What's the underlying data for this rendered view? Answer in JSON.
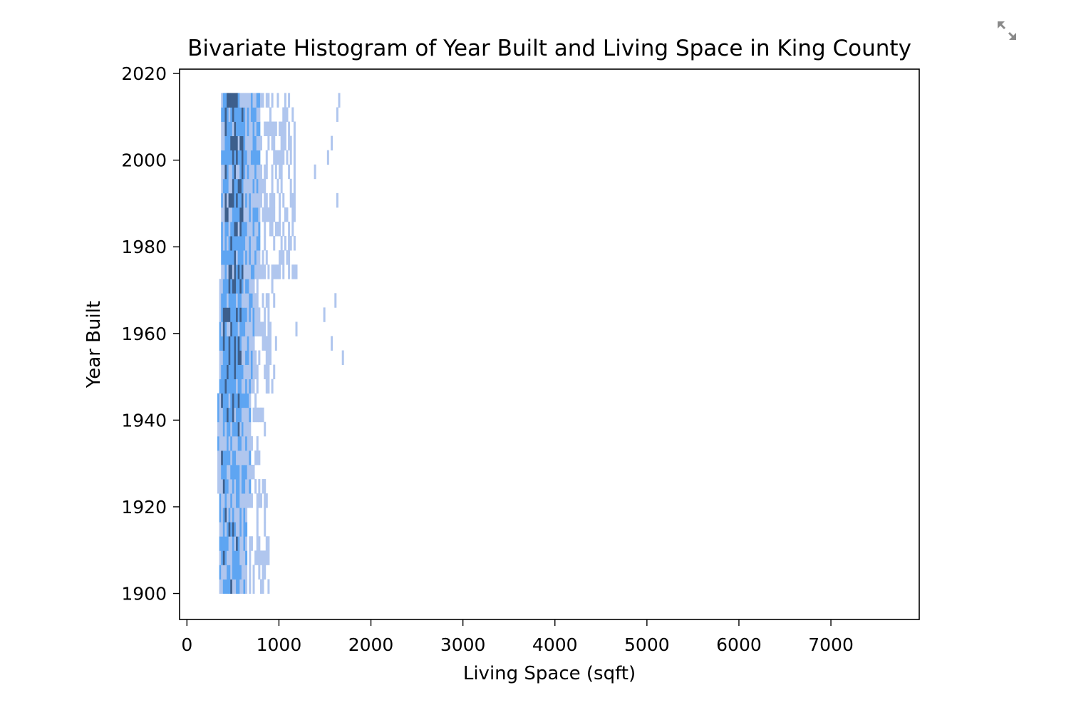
{
  "chart_data": {
    "type": "heatmap",
    "title": "Bivariate Histogram of Year Built and Living Space in King County",
    "xlabel": "Living Space (sqft)",
    "ylabel": "Year Built",
    "xlim": [
      -80,
      7960
    ],
    "ylim": [
      1894,
      2021
    ],
    "x_ticks": [
      0,
      1000,
      2000,
      3000,
      4000,
      5000,
      6000,
      7000
    ],
    "y_ticks": [
      1900,
      1920,
      1940,
      1960,
      1980,
      2000,
      2020
    ],
    "grid": false,
    "legend": "none",
    "colors": {
      "light": "#b0c6ee",
      "mid": "#5ea5f2",
      "dark": "#3d5f8c"
    },
    "x_bins": {
      "start": 290,
      "width": 156
    },
    "y_bins": {
      "start": 1900,
      "width": 3.3
    },
    "cells": [
      [
        0,
        10,
        4,
        0
      ],
      [
        1,
        16,
        1,
        1
      ],
      [
        2,
        30,
        0,
        1
      ],
      [
        0,
        1,
        8,
        1
      ],
      [
        0,
        1,
        12,
        1
      ],
      [
        0,
        1,
        20,
        1
      ],
      [
        0,
        1,
        24,
        1
      ],
      [
        1,
        25,
        0,
        1
      ],
      [
        2,
        25,
        1,
        1
      ],
      [
        1,
        23,
        0,
        1
      ],
      [
        1,
        29,
        2,
        1
      ],
      [
        7,
        35,
        0,
        1
      ],
      [
        7,
        11,
        0,
        1
      ],
      [
        13,
        34,
        0,
        1
      ],
      [
        6,
        8,
        0,
        1
      ],
      [
        12,
        20,
        0,
        1
      ],
      [
        15,
        22,
        0,
        1
      ],
      [
        11,
        17,
        0,
        1
      ],
      [
        16,
        17,
        0,
        1
      ],
      [
        8,
        20,
        0,
        1
      ],
      [
        8,
        14,
        0,
        1
      ],
      [
        14,
        20,
        0,
        1
      ],
      [
        17,
        19,
        0,
        1
      ],
      [
        19,
        22,
        0,
        1
      ],
      [
        18,
        22,
        0,
        1
      ],
      [
        21,
        28,
        0,
        1
      ],
      [
        25,
        27,
        0,
        1
      ],
      [
        22,
        24,
        0,
        1
      ],
      [
        24,
        28,
        0,
        1
      ],
      [
        28,
        33,
        0,
        1
      ],
      [
        30,
        33,
        0,
        1
      ],
      [
        32,
        34,
        0,
        1
      ],
      [
        33,
        34,
        0,
        1
      ],
      [
        19,
        31,
        3,
        1
      ],
      [
        20,
        35,
        5,
        1
      ],
      [
        23,
        34,
        7,
        1
      ],
      [
        18,
        26,
        9,
        1
      ],
      [
        27,
        35,
        9,
        1
      ],
      [
        15,
        25,
        10,
        1
      ],
      [
        13,
        22,
        11,
        1
      ],
      [
        31,
        34,
        12,
        1
      ],
      [
        28,
        31,
        13,
        1
      ],
      [
        34,
        35,
        13,
        1
      ],
      [
        37,
        38,
        14,
        1
      ],
      [
        40,
        41,
        15,
        1
      ],
      [
        41,
        42,
        16,
        1
      ],
      [
        44,
        45,
        16,
        1
      ],
      [
        45,
        46,
        17,
        1
      ],
      [
        46,
        47,
        18,
        1
      ],
      [
        47,
        48,
        19,
        1
      ],
      [
        48,
        49,
        20,
        1
      ],
      [
        15,
        18,
        36,
        1
      ],
      [
        17,
        20,
        36,
        1
      ],
      [
        4,
        22,
        36,
        1
      ],
      [
        9,
        11,
        36,
        1
      ],
      [
        14,
        16,
        37,
        1
      ],
      [
        3,
        21,
        37,
        1
      ],
      [
        2,
        5,
        38,
        1
      ],
      [
        5,
        11,
        38,
        1
      ],
      [
        9,
        14,
        39,
        1
      ],
      [
        30,
        36,
        39,
        1
      ],
      [
        35,
        36,
        5,
        1
      ],
      [
        39,
        40,
        8,
        1
      ],
      [
        40,
        41,
        10,
        1
      ],
      [
        36,
        37,
        13,
        1
      ],
      [
        47,
        48,
        20,
        1
      ],
      [
        53,
        56,
        21,
        1
      ],
      [
        58,
        60,
        22,
        1
      ],
      [
        61,
        62,
        22,
        1
      ],
      [
        57,
        58,
        25,
        1
      ],
      [
        50,
        51,
        27,
        1
      ]
    ]
  },
  "ui": {
    "expand_icon": "expand-icon"
  }
}
